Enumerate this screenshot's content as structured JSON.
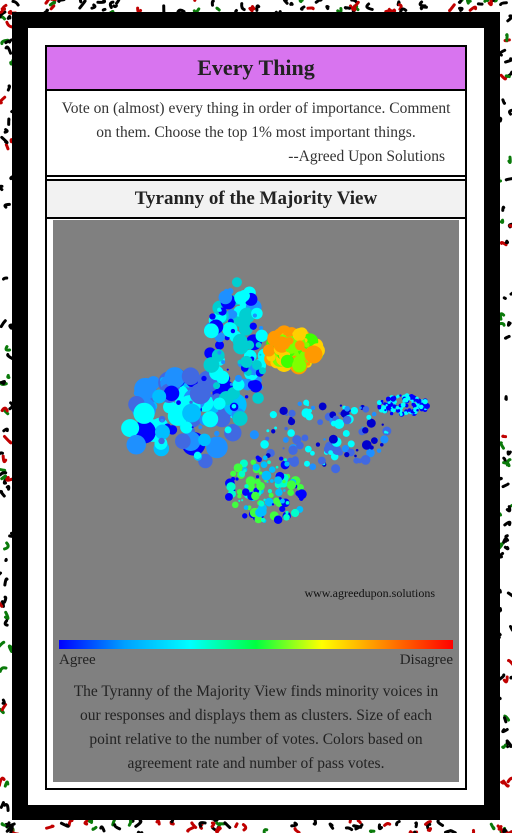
{
  "header": {
    "title": "Every Thing"
  },
  "intro": {
    "text": "Vote on (almost) every thing in order of importance. Comment on them. Choose the top 1% most important things.",
    "signature": "--Agreed Upon Solutions"
  },
  "section": {
    "title": "Tyranny of the Majority View",
    "watermark": "www.agreedupon.solutions",
    "scale_left": "Agree",
    "scale_right": "Disagree",
    "description": "The Tyranny of the Majority View finds minority voices in our responses and displays them as clusters. Size of each point relative to the number of votes. Colors based on agreement rate and number of pass votes."
  }
}
